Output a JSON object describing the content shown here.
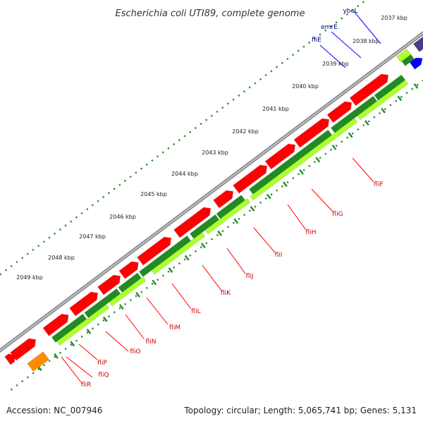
{
  "title": "Escherichia coli UTI89, complete genome",
  "footer": {
    "accession": "Accession: NC_007946",
    "summary": "Topology: circular; Length: 5,065,741 bp; Genes: 5,131"
  },
  "kbp_ticks": [
    "2037 kbp",
    "2038 kbp",
    "2039 kbp",
    "2040 kbp",
    "2041 kbp",
    "2042 kbp",
    "2043 kbp",
    "2044 kbp",
    "2045 kbp",
    "2046 kbp",
    "2047 kbp",
    "2048 kbp",
    "2049 kbp"
  ],
  "blue_gene_labels": [
    "ybcL",
    "emrE",
    "fliE"
  ],
  "red_gene_labels": [
    "fliF",
    "fliG",
    "fliH",
    "fliI",
    "fliJ",
    "fliK",
    "fliL",
    "fliM",
    "fliN",
    "fliO",
    "fliP",
    "fliQ",
    "fliR"
  ],
  "colors": {
    "cds": "#ff0000",
    "gene_dark": "#228b22",
    "gene_light": "#adff2f",
    "dots": "#228b22",
    "backbone": "#999999",
    "blue_feature": "#0000ff",
    "navy_feature": "#483d8b",
    "grey_feature": "#c0c0c0",
    "orange_feature": "#ff8c00"
  }
}
